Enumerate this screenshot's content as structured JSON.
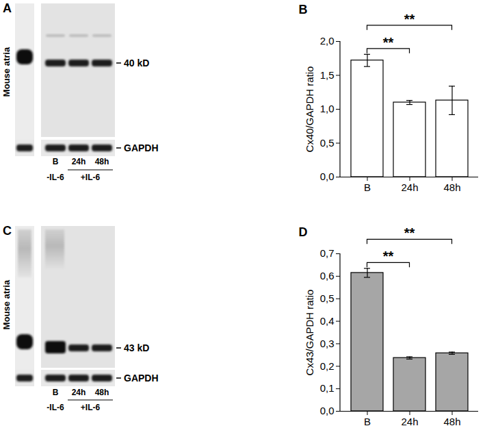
{
  "blots": [
    {
      "panel": "A",
      "side_label": "Mouse atria",
      "band_label": "40 kD",
      "loading_label": "GAPDH",
      "lanes": [
        "B",
        "24h",
        "48h"
      ],
      "groups": [
        {
          "label": "-IL-6",
          "lanes": [
            "B"
          ]
        },
        {
          "label": "+IL-6",
          "lanes": [
            "24h",
            "48h"
          ]
        }
      ]
    },
    {
      "panel": "C",
      "side_label": "Mouse atria",
      "band_label": "43 kD",
      "loading_label": "GAPDH",
      "lanes": [
        "B",
        "24h",
        "48h"
      ],
      "groups": [
        {
          "label": "-IL-6",
          "lanes": [
            "B"
          ]
        },
        {
          "label": "+IL-6",
          "lanes": [
            "24h",
            "48h"
          ]
        }
      ]
    }
  ],
  "chart_data": [
    {
      "panel": "B",
      "type": "bar",
      "categories": [
        "B",
        "24h",
        "48h"
      ],
      "values": [
        1.72,
        1.1,
        1.13
      ],
      "errors": [
        0.09,
        0.03,
        0.21
      ],
      "color": "#ffffff",
      "ylabel": "Cx40/GAPDH ratio",
      "ylim": [
        0,
        2
      ],
      "yticks": [
        {
          "value": 0,
          "label": "0,0"
        },
        {
          "value": 0.5,
          "label": "0,5"
        },
        {
          "value": 1,
          "label": "1,0"
        },
        {
          "value": 1.5,
          "label": "1,5"
        },
        {
          "value": 2,
          "label": "2,0"
        }
      ],
      "annotations": [
        {
          "from": "B",
          "to": "24h",
          "text": "**"
        },
        {
          "from": "B",
          "to": "48h",
          "text": "**"
        }
      ]
    },
    {
      "panel": "D",
      "type": "bar",
      "categories": [
        "B",
        "24h",
        "48h"
      ],
      "values": [
        0.615,
        0.237,
        0.258
      ],
      "errors": [
        0.02,
        0.005,
        0.005
      ],
      "color": "#a6a6a6",
      "ylabel": "Cx43/GAPDH ratio",
      "ylim": [
        0,
        0.7
      ],
      "yticks": [
        {
          "value": 0,
          "label": "0,0"
        },
        {
          "value": 0.1,
          "label": "0,1"
        },
        {
          "value": 0.2,
          "label": "0,2"
        },
        {
          "value": 0.3,
          "label": "0,3"
        },
        {
          "value": 0.4,
          "label": "0,4"
        },
        {
          "value": 0.5,
          "label": "0,5"
        },
        {
          "value": 0.6,
          "label": "0,6"
        },
        {
          "value": 0.7,
          "label": "0,7"
        }
      ],
      "annotations": [
        {
          "from": "B",
          "to": "24h",
          "text": "**"
        },
        {
          "from": "B",
          "to": "48h",
          "text": "**"
        }
      ]
    }
  ]
}
